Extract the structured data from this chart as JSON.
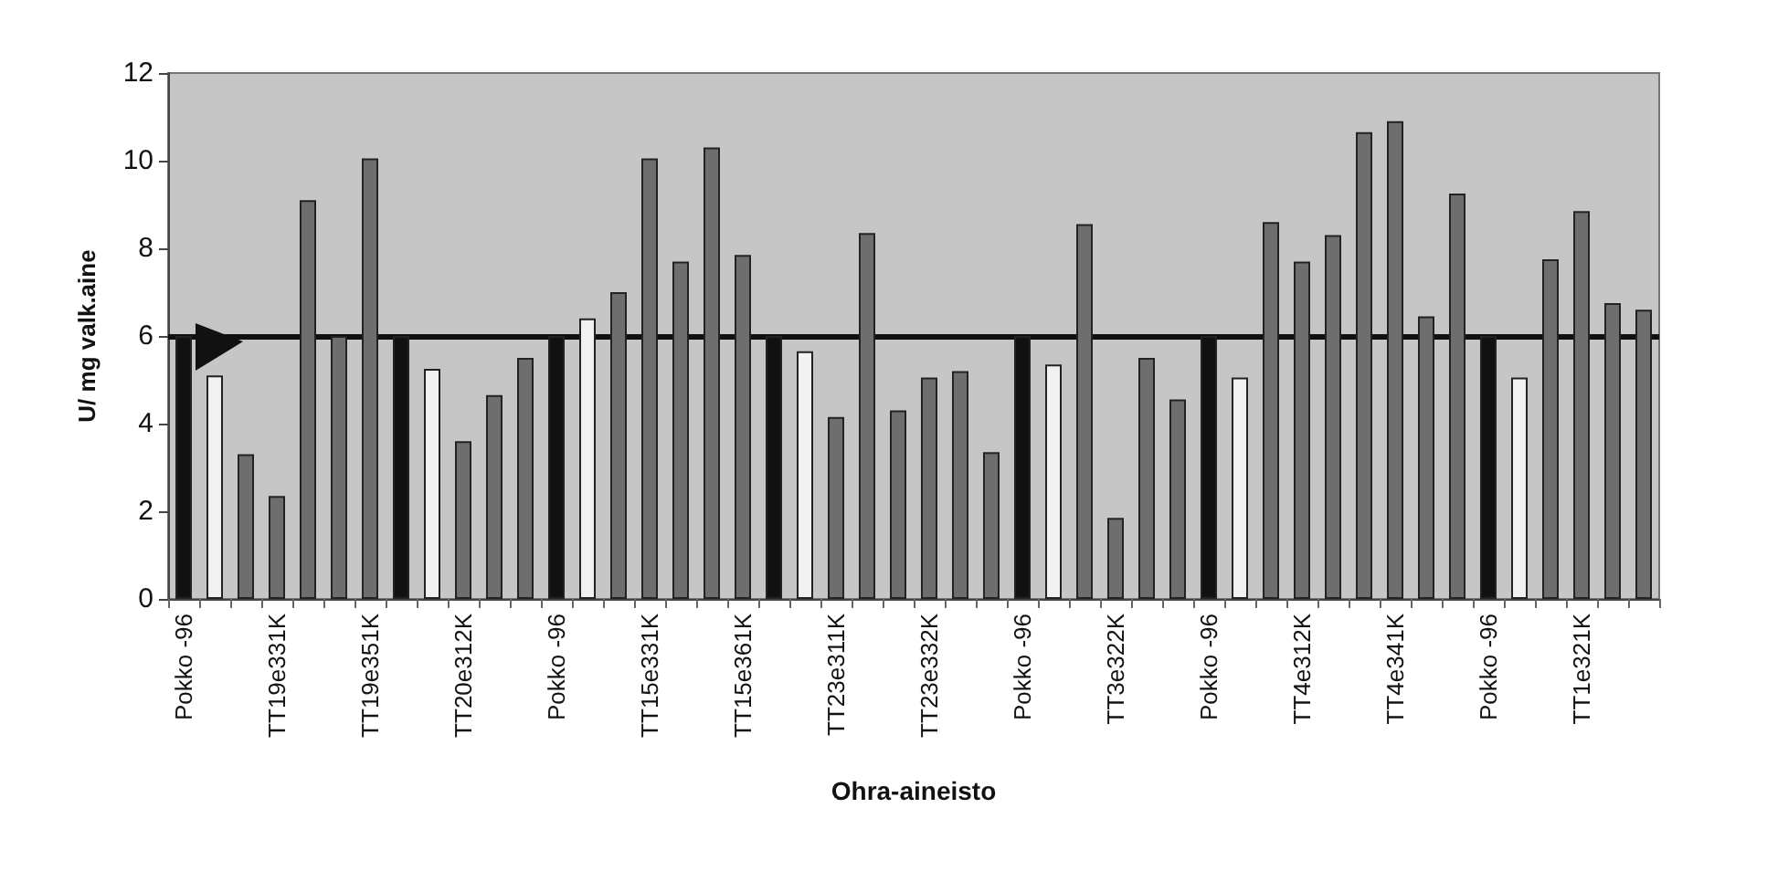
{
  "chart_data": {
    "type": "bar",
    "xlabel": "Ohra-aineisto",
    "ylabel": "U/ mg valk.aine",
    "categories": [
      "Pokko -96",
      null,
      null,
      "TT19e331K",
      null,
      null,
      "TT19e351K",
      null,
      null,
      "TT20e312K",
      null,
      null,
      "Pokko -96",
      null,
      null,
      "TT15e331K",
      null,
      null,
      "TT15e361K",
      null,
      null,
      "TT23e311K",
      null,
      null,
      "TT23e332K",
      null,
      null,
      "Pokko -96",
      null,
      null,
      "TT3e322K",
      null,
      null,
      "Pokko -96",
      null,
      null,
      "TT4e312K",
      null,
      null,
      "TT4e341K",
      null,
      null,
      "Pokko -96",
      null,
      null,
      "TT1e321K",
      null,
      null
    ],
    "values": [
      6,
      5.1,
      3.3,
      2.35,
      9.1,
      6.0,
      10.05,
      6,
      5.25,
      3.6,
      4.65,
      5.5,
      6,
      6.4,
      7.0,
      10.05,
      7.7,
      10.3,
      7.85,
      6,
      5.65,
      4.15,
      8.35,
      4.3,
      5.05,
      5.2,
      3.35,
      6,
      5.35,
      8.55,
      1.85,
      5.5,
      4.55,
      6,
      5.05,
      8.6,
      7.7,
      8.3,
      10.65,
      10.9,
      6.45,
      9.25,
      6,
      5.05,
      7.75,
      8.85,
      6.75,
      6.6
    ],
    "colors": [
      "#111111",
      "#f2f2f2",
      "#6e6e6e",
      "#6e6e6e",
      "#6e6e6e",
      "#6e6e6e",
      "#6e6e6e",
      "#111111",
      "#f2f2f2",
      "#6e6e6e",
      "#6e6e6e",
      "#6e6e6e",
      "#111111",
      "#f2f2f2",
      "#6e6e6e",
      "#6e6e6e",
      "#6e6e6e",
      "#6e6e6e",
      "#6e6e6e",
      "#111111",
      "#f2f2f2",
      "#6e6e6e",
      "#6e6e6e",
      "#6e6e6e",
      "#6e6e6e",
      "#6e6e6e",
      "#6e6e6e",
      "#111111",
      "#f2f2f2",
      "#6e6e6e",
      "#6e6e6e",
      "#6e6e6e",
      "#6e6e6e",
      "#111111",
      "#f2f2f2",
      "#6e6e6e",
      "#6e6e6e",
      "#6e6e6e",
      "#6e6e6e",
      "#6e6e6e",
      "#6e6e6e",
      "#6e6e6e",
      "#111111",
      "#f2f2f2",
      "#6e6e6e",
      "#6e6e6e",
      "#6e6e6e",
      "#6e6e6e"
    ],
    "ylim": [
      0,
      12
    ],
    "yticks": [
      0,
      2,
      4,
      6,
      8,
      10,
      12
    ],
    "ref_lines": [
      {
        "axis": "y",
        "value": 6,
        "color": "#111111"
      }
    ],
    "grid": false
  }
}
